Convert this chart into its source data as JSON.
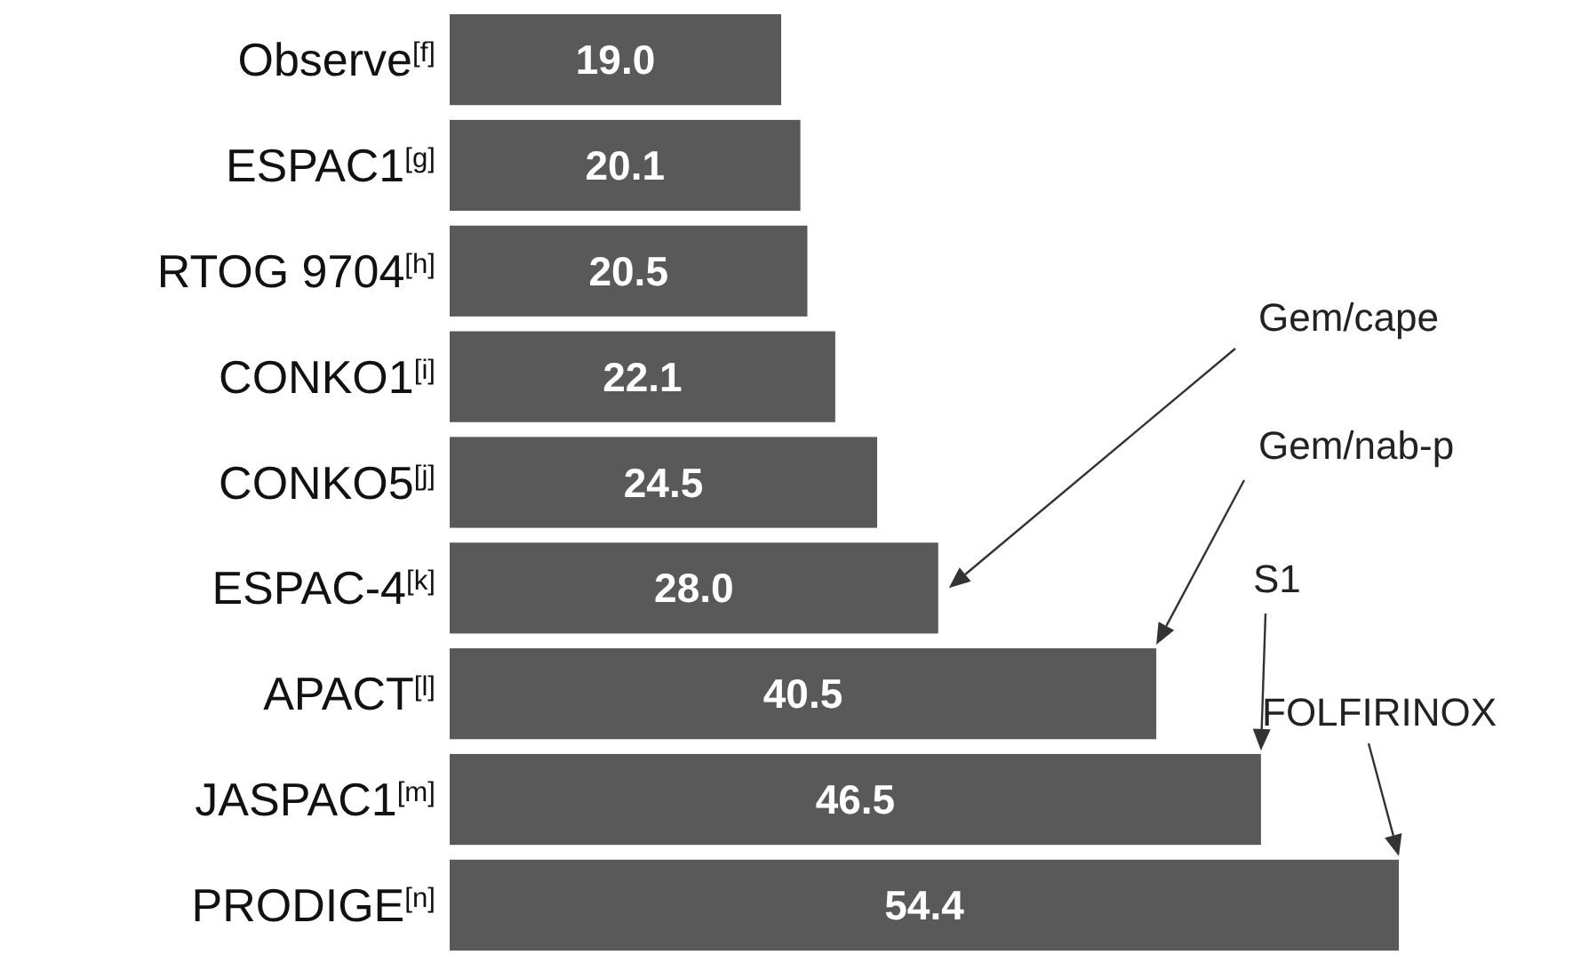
{
  "chart_data": {
    "type": "bar",
    "orientation": "horizontal",
    "color": "#595959",
    "value_labels": [
      "19.0",
      "20.1",
      "20.5",
      "22.1",
      "24.5",
      "28.0",
      "40.5",
      "46.5",
      "54.4"
    ],
    "categories": [
      "Observe$^{[f]}$",
      "ESPAC1$^{[g]}$",
      "RTOG 9704$^{[h]}$",
      "CONKO1$^{[i]}$",
      "CONKO5$^{[j]}$",
      "ESPAC-4$^{[k]}$",
      "APACT$^{[l]}$",
      "JASPAC1$^{[m]}$",
      "PRODIGE$^{[n]}$"
    ],
    "values": [
      19.0,
      20.1,
      20.5,
      22.1,
      24.5,
      28.0,
      40.5,
      46.5,
      54.4
    ],
    "annotations": [
      "Gem/cape",
      "Gem/nab-p",
      "S1",
      "FOLFIRINOX"
    ]
  }
}
